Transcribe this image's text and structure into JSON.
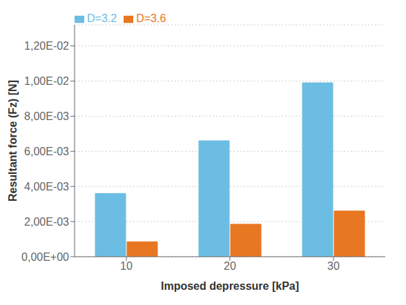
{
  "chart_data": {
    "type": "bar",
    "categories": [
      10,
      20,
      30
    ],
    "series": [
      {
        "name": "D=3.2",
        "color": "#6BBDE3",
        "values": [
          0.0036,
          0.0066,
          0.0099
        ]
      },
      {
        "name": "D=3.6",
        "color": "#E87722",
        "values": [
          0.00085,
          0.00185,
          0.0026
        ]
      }
    ],
    "xlabel": "Imposed depressure [kPa]",
    "ylabel": "Resultant force (Fz) [N]",
    "ylim": [
      0,
      0.0132
    ],
    "yticks": [
      {
        "value": 0.0,
        "label": "0,00E+00"
      },
      {
        "value": 0.002,
        "label": "2,00E-03"
      },
      {
        "value": 0.004,
        "label": "4,00E-03"
      },
      {
        "value": 0.006,
        "label": "6,00E-03"
      },
      {
        "value": 0.008,
        "label": "8,00E-03"
      },
      {
        "value": 0.01,
        "label": "1,00E-02"
      },
      {
        "value": 0.012,
        "label": "1,20E-02"
      }
    ],
    "grid": true,
    "legend": "upper left"
  }
}
